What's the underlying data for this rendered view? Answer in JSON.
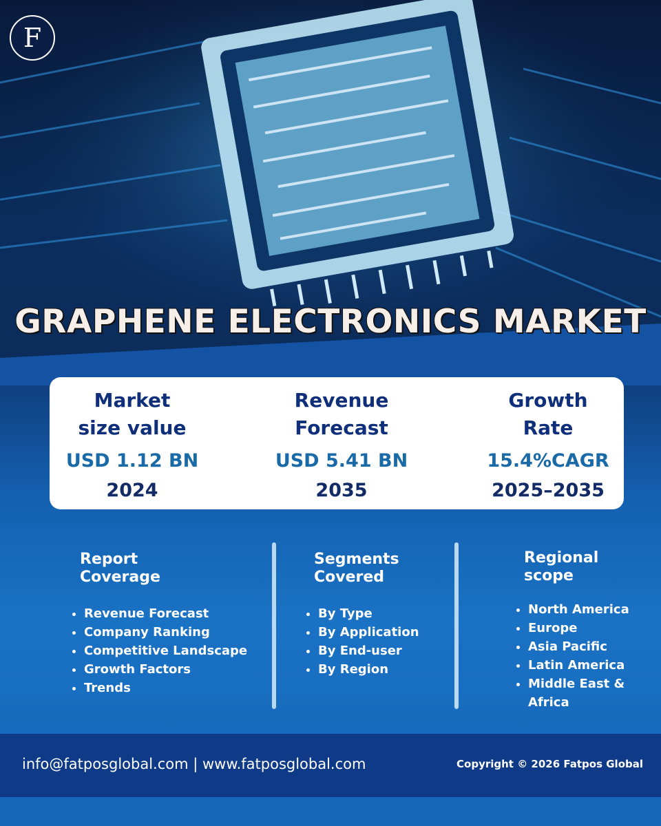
{
  "logo": {
    "letter": "F"
  },
  "title": "GRAPHENE ELECTRONICS MARKET",
  "stats": [
    {
      "label_lines": [
        "Market",
        "size value"
      ],
      "value": "USD 1.12 BN",
      "period": "2024"
    },
    {
      "label_lines": [
        "Revenue",
        "Forecast"
      ],
      "value": "USD  5.41 BN",
      "period": "2035"
    },
    {
      "label_lines": [
        "Growth",
        "Rate"
      ],
      "value": "15.4%CAGR",
      "period": "2025–2035"
    }
  ],
  "columns": [
    {
      "title_lines": [
        "Report",
        "Coverage"
      ],
      "items": [
        "Revenue Forecast",
        "Company Ranking",
        "Competitive Landscape",
        "Growth Factors",
        "Trends"
      ]
    },
    {
      "title_lines": [
        "Segments",
        "Covered"
      ],
      "items": [
        "By Type",
        "By Application",
        "By End-user",
        "By Region"
      ]
    },
    {
      "title_lines": [
        "Regional",
        "scope"
      ],
      "items": [
        "North America",
        "Europe",
        "Asia Pacific",
        "Latin America",
        "Middle East & Africa"
      ]
    }
  ],
  "footer": {
    "contact": "info@fatposglobal.com | www.fatposglobal.com",
    "copyright": "Copyright © 2026 Fatpos Global"
  }
}
